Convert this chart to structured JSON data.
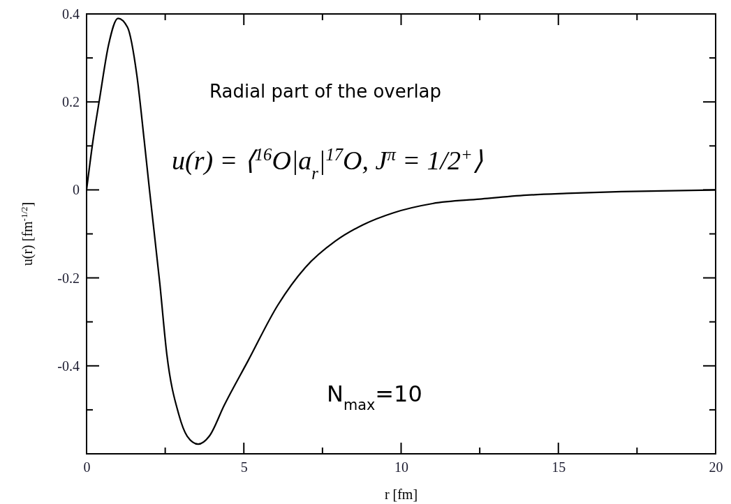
{
  "chart_data": {
    "type": "line",
    "xlabel": "r [fm]",
    "ylabel": "u(r) [fm$^{-1/2}$]",
    "annotations": [
      "Radial part of the overlap",
      "u(r) = ⟨$^{16}$O|a$_{r}$|$^{17}$O, J$^{π}$ = 1/2$^{+}$⟩",
      "N$_{max}$=10"
    ],
    "x": [
      0,
      0.2,
      0.42,
      0.7,
      1.0,
      1.3,
      1.6,
      1.83,
      2.0,
      2.33,
      2.55,
      2.93,
      3.2,
      3.55,
      3.9,
      4.38,
      5.13,
      6.08,
      6.96,
      7.9,
      8.8,
      9.76,
      11,
      12.5,
      14,
      15.26,
      17,
      20
    ],
    "series": [
      {
        "color": "#000000",
        "values": [
          0,
          0.11,
          0.21,
          0.33,
          0.39,
          0.37,
          0.26,
          0.114,
          0,
          -0.214,
          -0.373,
          -0.51,
          -0.56,
          -0.578,
          -0.56,
          -0.489,
          -0.389,
          -0.262,
          -0.176,
          -0.117,
          -0.079,
          -0.052,
          -0.031,
          -0.021,
          -0.012,
          -0.008,
          -0.004,
          0
        ]
      }
    ],
    "xlim": [
      0,
      20
    ],
    "xticks": [
      0,
      {
        "value": 2.5,
        "label": null
      },
      5,
      {
        "value": 7.5,
        "label": null
      },
      10,
      {
        "value": 12.5,
        "label": null
      },
      15,
      {
        "value": 17.5,
        "label": null
      },
      20
    ],
    "ylim": [
      -0.6,
      0.4
    ],
    "yticks": [
      {
        "value": -0.6,
        "label": null
      },
      {
        "value": -0.5,
        "label": null
      },
      -0.4,
      {
        "value": -0.3,
        "label": null
      },
      -0.2,
      {
        "value": -0.1,
        "label": null
      },
      0,
      {
        "value": 0.1,
        "label": null
      },
      0.2,
      {
        "value": 0.3,
        "label": null
      },
      0.4
    ],
    "grid": false,
    "marker": "none",
    "line_style": "solid"
  }
}
